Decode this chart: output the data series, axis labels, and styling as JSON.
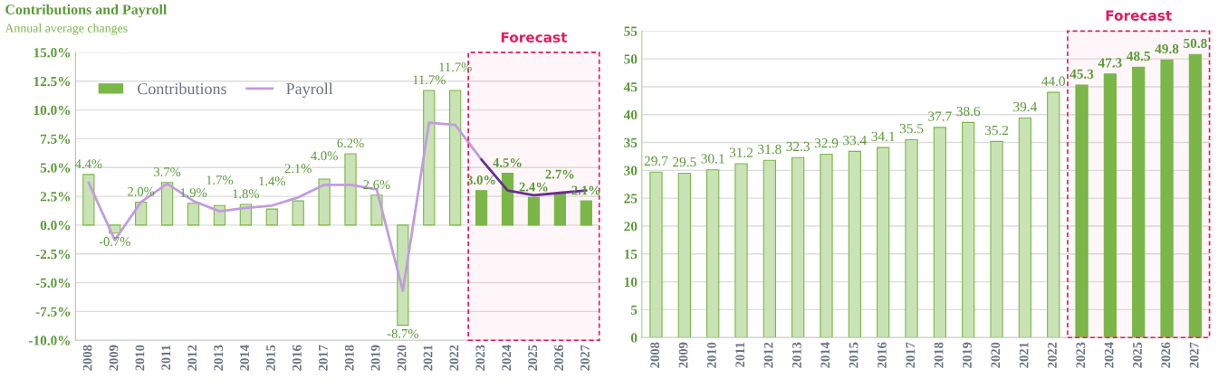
{
  "chart_data": [
    {
      "type": "bar",
      "title": "Contributions and Payroll",
      "subtitle": "Annual average changes",
      "categories": [
        "2008",
        "2009",
        "2010",
        "2011",
        "2012",
        "2013",
        "2014",
        "2015",
        "2016",
        "2017",
        "2018",
        "2019",
        "2020",
        "2021",
        "2022",
        "2023",
        "2024",
        "2025",
        "2026",
        "2027"
      ],
      "series": [
        {
          "name": "Contributions",
          "color": "#7ab648",
          "colors": [
            "#c9e3b6",
            "#c9e3b6",
            "#c9e3b6",
            "#c9e3b6",
            "#c9e3b6",
            "#c9e3b6",
            "#c9e3b6",
            "#c9e3b6",
            "#c9e3b6",
            "#c9e3b6",
            "#c9e3b6",
            "#c9e3b6",
            "#c9e3b6",
            "#c9e3b6",
            "#c9e3b6",
            "#7ab648",
            "#7ab648",
            "#7ab648",
            "#7ab648",
            "#7ab648"
          ],
          "values": [
            4.4,
            -0.7,
            2.0,
            3.7,
            1.9,
            1.7,
            1.8,
            1.4,
            2.1,
            4.0,
            6.2,
            2.6,
            -8.7,
            11.7,
            11.7,
            3.0,
            4.5,
            2.4,
            2.7,
            2.1
          ],
          "value_labels": [
            "4.4%",
            "-0.7%",
            "2.0%",
            "3.7%",
            "1.9%",
            "1.7%",
            "1.8%",
            "1.4%",
            "2.1%",
            "4.0%",
            "6.2%",
            "2.6%",
            "-8.7%",
            "11.7%",
            "11.7%",
            "3.0%",
            "4.5%",
            "2.4%",
            "2.7%",
            "2.1%"
          ]
        },
        {
          "name": "Payroll",
          "type": "line",
          "color": "#c39bdf",
          "values": [
            3.7,
            -1.3,
            2.0,
            3.6,
            2.1,
            1.2,
            1.5,
            1.7,
            2.4,
            3.5,
            3.5,
            3.1,
            -5.7,
            8.9,
            8.7,
            5.7,
            null,
            null,
            null,
            null
          ]
        },
        {
          "type": "line",
          "color": "#6a2e91",
          "values": [
            null,
            null,
            null,
            null,
            null,
            null,
            null,
            null,
            null,
            null,
            null,
            null,
            null,
            null,
            null,
            5.7,
            3.0,
            2.6,
            2.8,
            3.0
          ]
        }
      ],
      "ylim": [
        -10,
        15
      ],
      "yticks": [
        {
          "value": -10,
          "label": "-10.0%"
        },
        {
          "value": -7.5,
          "label": "-7.5%"
        },
        {
          "value": -5,
          "label": "-5.0%"
        },
        {
          "value": -2.5,
          "label": "-2.5%"
        },
        {
          "value": 0,
          "label": "0.0%"
        },
        {
          "value": 2.5,
          "label": "2.5%"
        },
        {
          "value": 5,
          "label": "5.0%"
        },
        {
          "value": 7.5,
          "label": "7.5%"
        },
        {
          "value": 10,
          "label": "10.0%"
        },
        {
          "value": 12.5,
          "label": "12.5%"
        },
        {
          "value": 15,
          "label": "15.0%"
        }
      ],
      "grid": "y",
      "legend": "top left",
      "marker": "none",
      "line_style": "solid",
      "bands": [
        {
          "axis": "x",
          "from": "2023",
          "to": "2027",
          "label": "Forecast",
          "color": "#e8195a"
        }
      ]
    },
    {
      "type": "bar",
      "categories": [
        "2008",
        "2009",
        "2010",
        "2011",
        "2012",
        "2013",
        "2014",
        "2015",
        "2016",
        "2017",
        "2018",
        "2019",
        "2020",
        "2021",
        "2022",
        "2023",
        "2024",
        "2025",
        "2026",
        "2027"
      ],
      "series": [
        {
          "color": "#7ab648",
          "colors": [
            "#c9e3b6",
            "#c9e3b6",
            "#c9e3b6",
            "#c9e3b6",
            "#c9e3b6",
            "#c9e3b6",
            "#c9e3b6",
            "#c9e3b6",
            "#c9e3b6",
            "#c9e3b6",
            "#c9e3b6",
            "#c9e3b6",
            "#c9e3b6",
            "#c9e3b6",
            "#c9e3b6",
            "#7ab648",
            "#7ab648",
            "#7ab648",
            "#7ab648",
            "#7ab648"
          ],
          "values": [
            29.7,
            29.5,
            30.1,
            31.2,
            31.8,
            32.3,
            32.9,
            33.4,
            34.1,
            35.5,
            37.7,
            38.6,
            35.2,
            39.4,
            44.0,
            45.3,
            47.3,
            48.5,
            49.8,
            50.8
          ],
          "value_labels": [
            "29.7",
            "29.5",
            "30.1",
            "31.2",
            "31.8",
            "32.3",
            "32.9",
            "33.4",
            "34.1",
            "35.5",
            "37.7",
            "38.6",
            "35.2",
            "39.4",
            "44.0",
            "45.3",
            "47.3",
            "48.5",
            "49.8",
            "50.8"
          ]
        }
      ],
      "ylim": [
        0,
        55
      ],
      "yticks": [
        0,
        5,
        10,
        15,
        20,
        25,
        30,
        35,
        40,
        45,
        50,
        55
      ],
      "grid": "y",
      "bands": [
        {
          "axis": "x",
          "from": "2023",
          "to": "2027",
          "label": "Forecast",
          "color": "#e8195a"
        }
      ]
    }
  ]
}
